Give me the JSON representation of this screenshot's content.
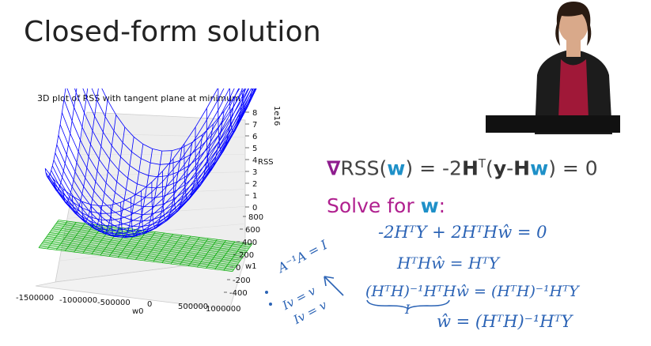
{
  "slide": {
    "title": "Closed-form solution"
  },
  "chart_data": {
    "type": "3d-surface",
    "title": "3D plot of RSS with tangent plane at minimum",
    "xlabel": "w0",
    "ylabel": "w1",
    "zlabel": "RSS",
    "z_scale_label": "1e16",
    "x_ticks": [
      "-1500000",
      "-1000000",
      "-500000",
      "0",
      "500000",
      "1000000"
    ],
    "y_ticks": [
      "-400",
      "-200",
      "0",
      "200",
      "400",
      "600",
      "800"
    ],
    "z_ticks": [
      "0",
      "1",
      "2",
      "3",
      "4",
      "5",
      "6",
      "7",
      "8"
    ],
    "x_range": [
      -1500000,
      1000000
    ],
    "y_range": [
      -400,
      800
    ],
    "z_range": [
      0,
      8
    ],
    "series": [
      {
        "name": "",
        "color": "#0000ff"
      },
      {
        "name": "",
        "color": "#00aa00"
      }
    ]
  },
  "equations": {
    "gradient": {
      "nabla": "∇",
      "rss": "RSS(",
      "w1": "w",
      "eq_part": ") = -2",
      "h": "H",
      "t": "T",
      "open": "(",
      "y": "y",
      "minus": "-",
      "h2": "H",
      "w2": "w",
      "close": ") = 0"
    },
    "solve": {
      "text": "Solve for ",
      "w": "w",
      "colon": ":"
    }
  },
  "handwriting": {
    "line1": "-2HᵀY + 2HᵀHŵ = 0",
    "line2": "HᵀHŵ = HᵀY",
    "line3": "(HᵀH)⁻¹HᵀHŵ = (HᵀH)⁻¹HᵀY",
    "line3_under": "I",
    "line4": "ŵ = (HᵀH)⁻¹HᵀY",
    "note1": "A⁻¹A = I",
    "note2": "Iv = v",
    "note3": "Iv = v"
  },
  "colors": {
    "accent_purple": "#b0208f",
    "accent_blue": "#1e90c8",
    "ink_blue": "#2b63b5"
  }
}
